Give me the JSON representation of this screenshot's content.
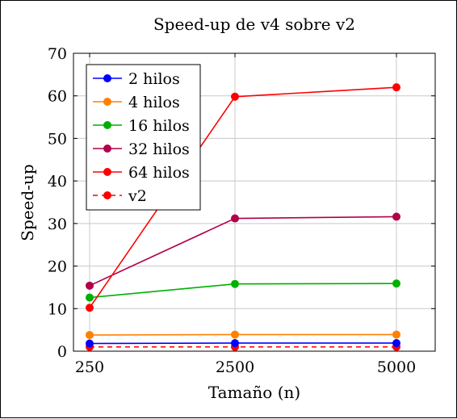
{
  "chart_data": {
    "type": "line",
    "title": "Speed-up de v4 sobre v2",
    "xlabel": "Tamaño (n)",
    "ylabel": "Speed-up",
    "x": [
      250,
      2500,
      5000
    ],
    "x_tick_labels": [
      "250",
      "2500",
      "5000"
    ],
    "ylim": [
      0,
      70
    ],
    "y_ticks": [
      0,
      10,
      20,
      30,
      40,
      50,
      60,
      70
    ],
    "grid": true,
    "legend_position": "top-left",
    "series": [
      {
        "name": "2 hilos",
        "color": "#0000ff",
        "dashed": false,
        "values": [
          1.8,
          1.9,
          1.9
        ]
      },
      {
        "name": "4 hilos",
        "color": "#ff8000",
        "dashed": false,
        "values": [
          3.8,
          3.9,
          3.9
        ]
      },
      {
        "name": "16 hilos",
        "color": "#00b000",
        "dashed": false,
        "values": [
          12.6,
          15.8,
          15.9
        ]
      },
      {
        "name": "32 hilos",
        "color": "#b0004a",
        "dashed": false,
        "values": [
          15.4,
          31.2,
          31.6
        ]
      },
      {
        "name": "64 hilos",
        "color": "#ff0000",
        "dashed": false,
        "values": [
          10.2,
          59.8,
          62.0
        ]
      },
      {
        "name": "v2",
        "color": "#ff0000",
        "dashed": true,
        "values": [
          1.0,
          1.0,
          1.0
        ]
      }
    ]
  }
}
